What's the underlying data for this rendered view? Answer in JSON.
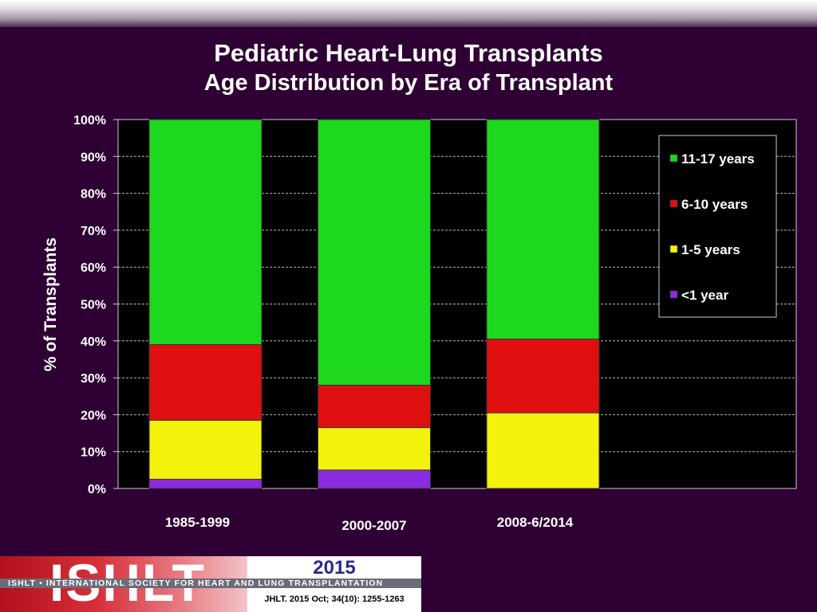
{
  "header": {
    "title": "Pediatric Heart-Lung Transplants",
    "subtitle": "Age Distribution by Era of Transplant"
  },
  "chart_data": {
    "type": "bar",
    "stacked": true,
    "title": "Pediatric Heart-Lung Transplants",
    "subtitle": "Age Distribution by Era of Transplant",
    "xlabel": "",
    "ylabel": "% of Transplants",
    "ylim": [
      0,
      100
    ],
    "yticks": [
      "0%",
      "10%",
      "20%",
      "30%",
      "40%",
      "50%",
      "60%",
      "70%",
      "80%",
      "90%",
      "100%"
    ],
    "grid": true,
    "legend_position": "right",
    "categories": [
      "1985-1999",
      "2000-2007",
      "2008-6/2014"
    ],
    "series": [
      {
        "name": "<1 year",
        "color": "#8a2be2",
        "values": [
          2.5,
          5,
          0
        ]
      },
      {
        "name": "1-5 years",
        "color": "#f2f20d",
        "values": [
          16,
          11.5,
          20.5
        ]
      },
      {
        "name": "6-10 years",
        "color": "#e01010",
        "values": [
          20.5,
          11.5,
          20
        ]
      },
      {
        "name": "11-17 years",
        "color": "#1ed81e",
        "values": [
          61,
          72,
          59.5
        ]
      }
    ]
  },
  "footer": {
    "logo_text": "ISHLT",
    "year": "2015",
    "org_line": "ISHLT • INTERNATIONAL SOCIETY FOR HEART AND LUNG TRANSPLANTATION",
    "citation": "JHLT. 2015 Oct; 34(10): 1255-1263"
  }
}
